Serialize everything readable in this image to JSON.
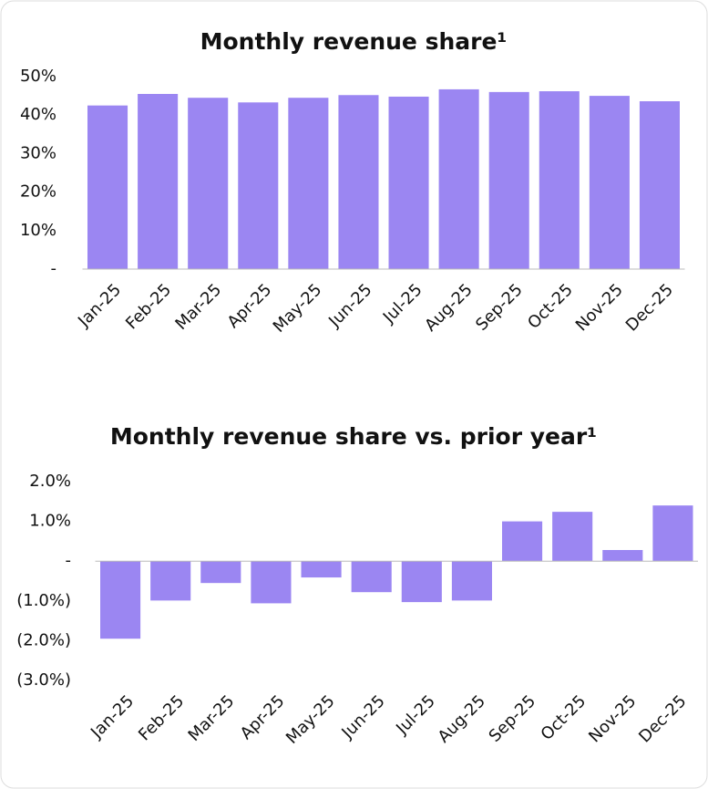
{
  "chart_data": [
    {
      "type": "bar",
      "title": "Monthly revenue share¹",
      "categories": [
        "Jan-25",
        "Feb-25",
        "Mar-25",
        "Apr-25",
        "May-25",
        "Jun-25",
        "Jul-25",
        "Aug-25",
        "Sep-25",
        "Oct-25",
        "Nov-25",
        "Dec-25"
      ],
      "values": [
        42.5,
        45.5,
        44.5,
        43.3,
        44.5,
        45.2,
        44.8,
        46.7,
        46.0,
        46.2,
        45.0,
        43.6
      ],
      "color": "#9b86f2",
      "ylim": [
        0,
        50
      ],
      "yticks": [
        {
          "value": 0,
          "label": "-"
        },
        {
          "value": 10,
          "label": "10%"
        },
        {
          "value": 20,
          "label": "20%"
        },
        {
          "value": 30,
          "label": "30%"
        },
        {
          "value": 40,
          "label": "40%"
        },
        {
          "value": 50,
          "label": "50%"
        }
      ]
    },
    {
      "type": "bar",
      "title": "Monthly revenue share vs. prior year¹",
      "categories": [
        "Jan-25",
        "Feb-25",
        "Mar-25",
        "Apr-25",
        "May-25",
        "Jun-25",
        "Jul-25",
        "Aug-25",
        "Sep-25",
        "Oct-25",
        "Nov-25",
        "Dec-25"
      ],
      "values": [
        -1.95,
        -0.99,
        -0.55,
        -1.06,
        -0.41,
        -0.78,
        -1.03,
        -0.99,
        1.0,
        1.24,
        0.28,
        1.4
      ],
      "color": "#9b86f2",
      "ylim": [
        -3,
        2
      ],
      "yticks": [
        {
          "value": -3,
          "label": "(3.0%)"
        },
        {
          "value": -2,
          "label": "(2.0%)"
        },
        {
          "value": -1,
          "label": "(1.0%)"
        },
        {
          "value": 0,
          "label": "-"
        },
        {
          "value": 1,
          "label": "1.0%"
        },
        {
          "value": 2,
          "label": "2.0%"
        }
      ]
    }
  ]
}
